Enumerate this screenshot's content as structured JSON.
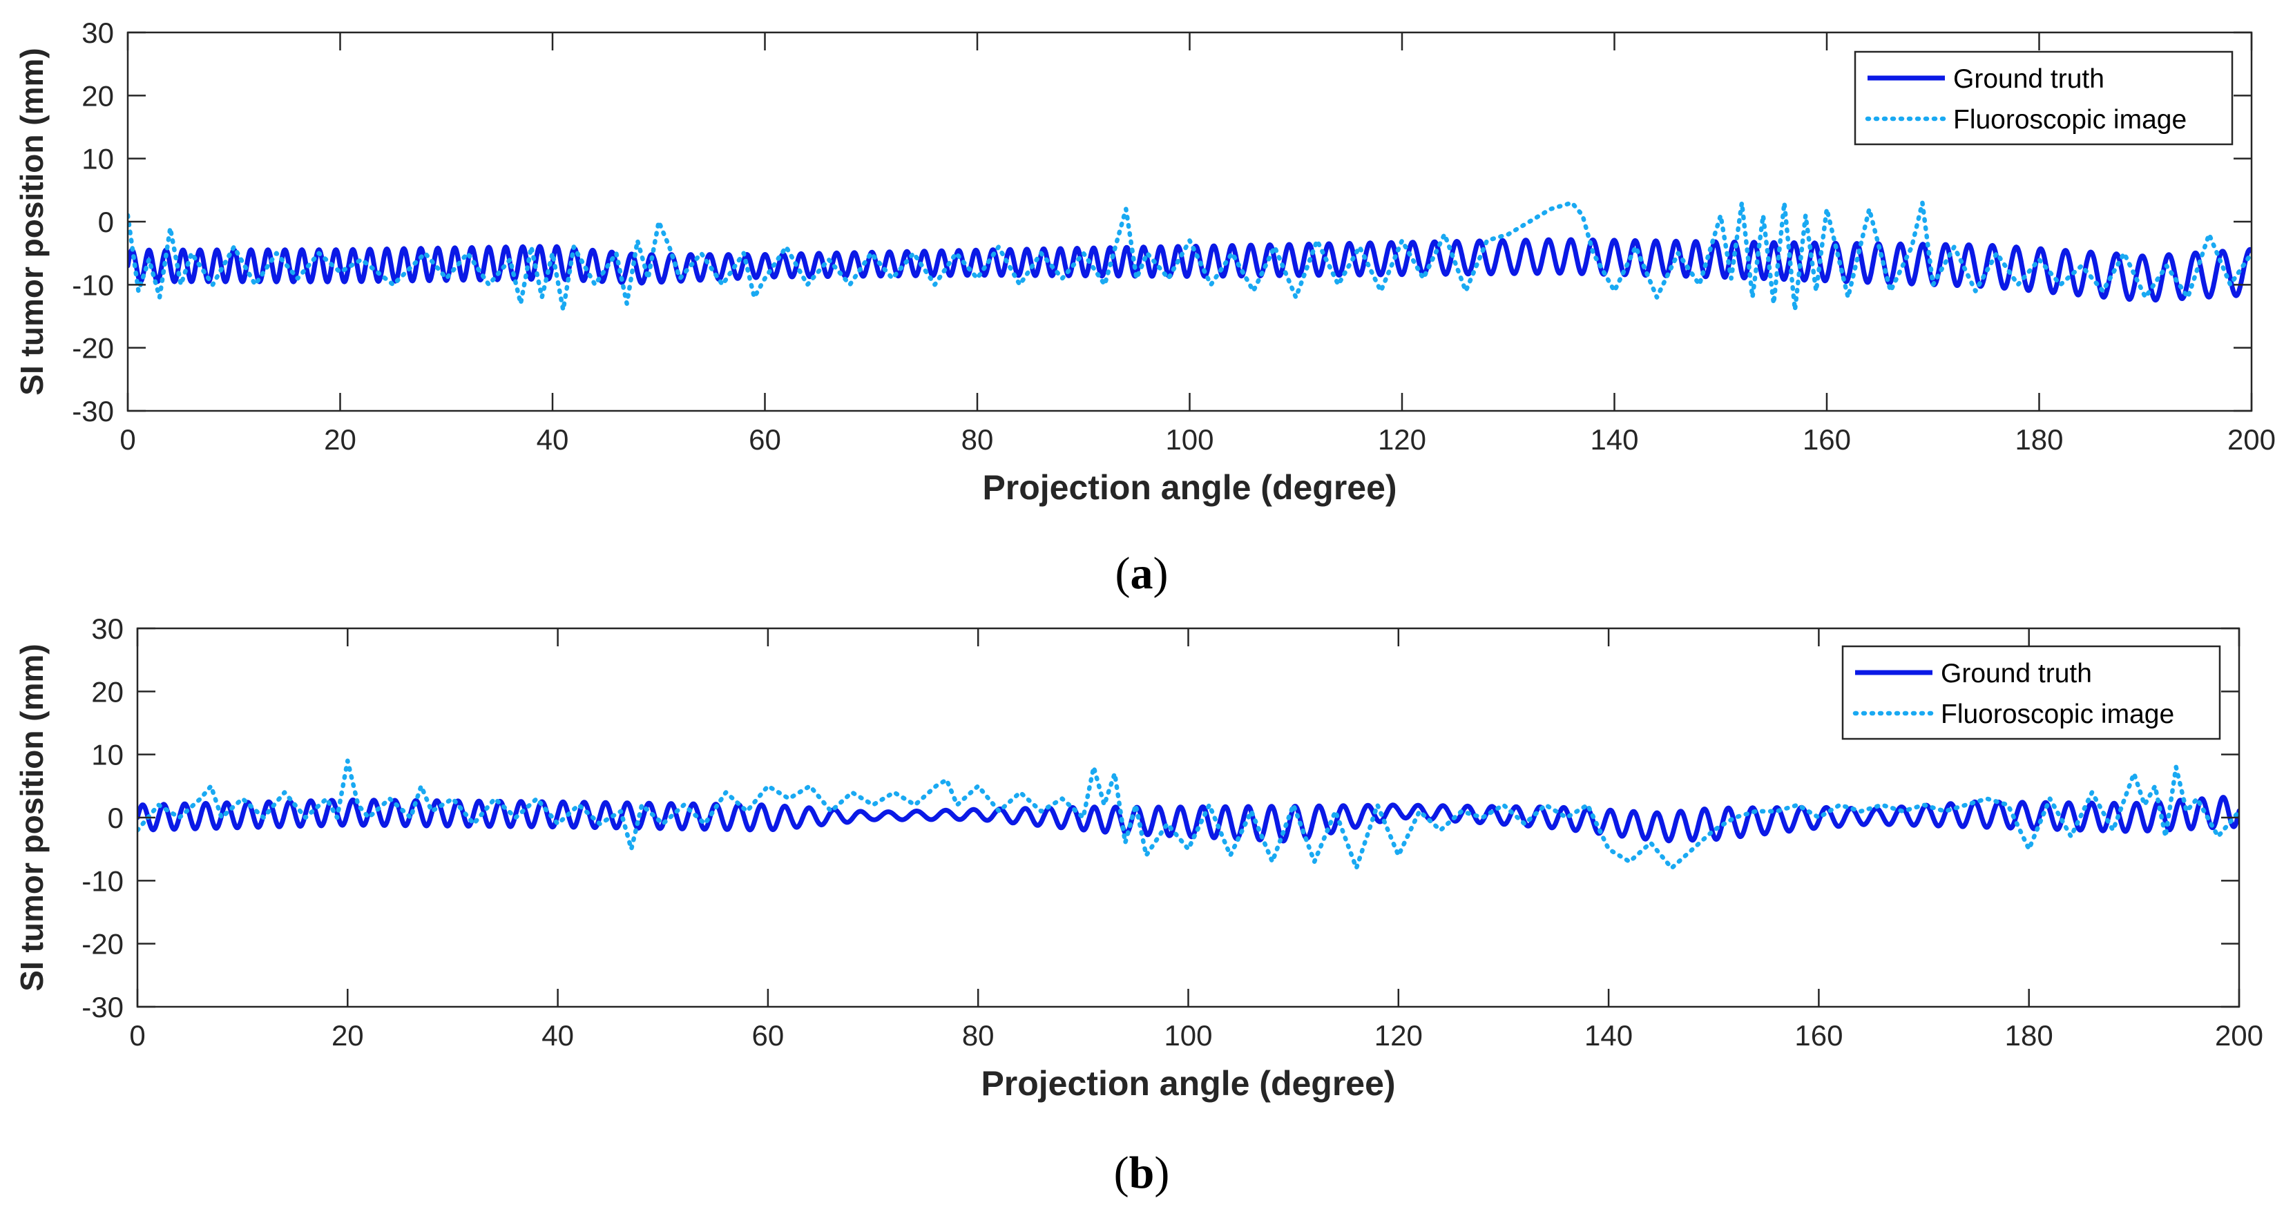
{
  "colors": {
    "ground_truth": "#0a19e6",
    "fluoroscopic": "#19a9f2",
    "axis": "#262626",
    "background": "#ffffff"
  },
  "chart_data": [
    {
      "type": "line",
      "panel_label_open": "(",
      "panel_label_letter": "a",
      "panel_label_close": ")",
      "xlabel": "Projection angle (degree)",
      "ylabel": "SI tumor position (mm)",
      "xlim": [
        0,
        200
      ],
      "ylim": [
        -30,
        30
      ],
      "xticks": [
        0,
        20,
        40,
        60,
        80,
        100,
        120,
        140,
        160,
        180,
        200
      ],
      "yticks": [
        -30,
        -20,
        -10,
        0,
        10,
        20,
        30
      ],
      "legend_position": "top-right",
      "series": [
        {
          "name": "Ground truth",
          "style": "solid",
          "amplitude": [
            [
              0,
              2.5
            ],
            [
              40,
              2.6
            ],
            [
              60,
              1.8
            ],
            [
              80,
              2.0
            ],
            [
              100,
              2.4
            ],
            [
              150,
              2.8
            ],
            [
              185,
              3.5
            ],
            [
              200,
              3.6
            ]
          ],
          "baseline": [
            [
              0,
              -7
            ],
            [
              20,
              -7
            ],
            [
              40,
              -6.5
            ],
            [
              48,
              -7.5
            ],
            [
              60,
              -7
            ],
            [
              80,
              -6.5
            ],
            [
              100,
              -6.3
            ],
            [
              135,
              -5.5
            ],
            [
              150,
              -6
            ],
            [
              175,
              -7
            ],
            [
              190,
              -9
            ],
            [
              200,
              -8
            ]
          ],
          "period": [
            [
              0,
              1.6
            ],
            [
              40,
              1.6
            ],
            [
              47,
              1.9
            ],
            [
              60,
              1.7
            ],
            [
              93,
              1.55
            ],
            [
              130,
              2.2
            ],
            [
              150,
              1.8
            ],
            [
              185,
              2.4
            ],
            [
              200,
              2.6
            ]
          ]
        },
        {
          "name": "Fluoroscopic image",
          "style": "dotted",
          "x": [
            0,
            1,
            2,
            3,
            4,
            5,
            6,
            8,
            10,
            12,
            14,
            16,
            18,
            20,
            22,
            25,
            28,
            30,
            32,
            34,
            36,
            37,
            38,
            39,
            40,
            41,
            42,
            44,
            46,
            47,
            48,
            49,
            50,
            51,
            52,
            54,
            56,
            58,
            59,
            60,
            62,
            64,
            66,
            68,
            70,
            72,
            74,
            76,
            78,
            80,
            82,
            84,
            86,
            88,
            90,
            92,
            93,
            94,
            95,
            96,
            98,
            100,
            102,
            104,
            106,
            108,
            110,
            112,
            114,
            116,
            118,
            120,
            122,
            124,
            126,
            128,
            130,
            132,
            134,
            136,
            137,
            138,
            140,
            142,
            144,
            146,
            148,
            150,
            151,
            152,
            153,
            154,
            155,
            156,
            157,
            158,
            159,
            160,
            162,
            164,
            166,
            168,
            169,
            170,
            172,
            174,
            176,
            178,
            180,
            182,
            184,
            186,
            188,
            190,
            192,
            194,
            196,
            198,
            200
          ],
          "y": [
            1,
            -11,
            -6,
            -12,
            -1,
            -10,
            -5,
            -10,
            -4,
            -10,
            -5,
            -9,
            -5,
            -8,
            -6,
            -10,
            -5,
            -9,
            -5,
            -10,
            -6,
            -13,
            -4,
            -12,
            -5,
            -14,
            -4,
            -10,
            -5,
            -13,
            -3,
            -9,
            0,
            -4,
            -9,
            -5,
            -10,
            -5,
            -12,
            -9,
            -4,
            -10,
            -6,
            -10,
            -5,
            -9,
            -5,
            -10,
            -5,
            -9,
            -4,
            -10,
            -5,
            -9,
            -5,
            -10,
            -4,
            2,
            -9,
            -5,
            -9,
            -3,
            -10,
            -5,
            -11,
            -4,
            -12,
            -3,
            -10,
            -4,
            -11,
            -3,
            -9,
            -2,
            -11,
            -3,
            -2,
            0,
            2,
            3,
            1,
            -5,
            -11,
            -4,
            -12,
            -5,
            -10,
            1,
            -9,
            3,
            -12,
            1,
            -13,
            3,
            -14,
            1,
            -11,
            2,
            -12,
            2,
            -11,
            -4,
            3,
            -10,
            -4,
            -11,
            -5,
            -10,
            -6,
            -10,
            -7,
            -11,
            -5,
            -12,
            -7,
            -12,
            -2,
            -10,
            -5
          ]
        }
      ]
    },
    {
      "type": "line",
      "panel_label_open": "(",
      "panel_label_letter": "b",
      "panel_label_close": ")",
      "xlabel": "Projection angle (degree)",
      "ylabel": "SI tumor position (mm)",
      "xlim": [
        0,
        200
      ],
      "ylim": [
        -30,
        30
      ],
      "xticks": [
        0,
        20,
        40,
        60,
        80,
        100,
        120,
        140,
        160,
        180,
        200
      ],
      "yticks": [
        -30,
        -20,
        -10,
        0,
        10,
        20,
        30
      ],
      "legend_position": "top-right",
      "series": [
        {
          "name": "Ground truth",
          "style": "solid",
          "amplitude": [
            [
              0,
              2.0
            ],
            [
              45,
              2.0
            ],
            [
              60,
              2.0
            ],
            [
              70,
              0.6
            ],
            [
              80,
              0.8
            ],
            [
              92,
              2.0
            ],
            [
              110,
              2.8
            ],
            [
              120,
              1.0
            ],
            [
              130,
              1.4
            ],
            [
              150,
              2.5
            ],
            [
              165,
              1.2
            ],
            [
              175,
              2.0
            ],
            [
              200,
              2.4
            ]
          ],
          "baseline": [
            [
              0,
              0
            ],
            [
              20,
              0.8
            ],
            [
              40,
              0.5
            ],
            [
              60,
              0
            ],
            [
              80,
              0.5
            ],
            [
              95,
              -0.5
            ],
            [
              110,
              -1
            ],
            [
              120,
              1
            ],
            [
              135,
              0
            ],
            [
              145,
              -1.5
            ],
            [
              160,
              0
            ],
            [
              175,
              0.5
            ],
            [
              190,
              0
            ],
            [
              200,
              1
            ]
          ],
          "period": [
            [
              0,
              2.0
            ],
            [
              40,
              2.0
            ],
            [
              60,
              2.2
            ],
            [
              75,
              2.8
            ],
            [
              92,
              2.0
            ],
            [
              120,
              2.4
            ],
            [
              140,
              2.2
            ],
            [
              165,
              2.4
            ],
            [
              200,
              2.0
            ]
          ]
        },
        {
          "name": "Fluoroscopic image",
          "style": "dotted",
          "x": [
            0,
            2,
            4,
            6,
            7,
            8,
            10,
            12,
            14,
            16,
            18,
            19,
            20,
            21,
            22,
            24,
            26,
            27,
            28,
            30,
            32,
            34,
            36,
            38,
            40,
            42,
            44,
            46,
            47,
            48,
            50,
            52,
            54,
            56,
            58,
            60,
            62,
            64,
            66,
            68,
            70,
            72,
            74,
            76,
            77,
            78,
            80,
            82,
            84,
            86,
            88,
            90,
            91,
            92,
            93,
            94,
            95,
            96,
            98,
            100,
            102,
            104,
            106,
            108,
            110,
            112,
            114,
            116,
            118,
            120,
            122,
            124,
            126,
            128,
            130,
            132,
            134,
            136,
            138,
            140,
            142,
            144,
            146,
            148,
            150,
            152,
            154,
            156,
            158,
            160,
            162,
            164,
            166,
            168,
            170,
            172,
            174,
            176,
            178,
            180,
            182,
            184,
            186,
            188,
            190,
            191,
            192,
            193,
            194,
            195,
            196,
            198,
            200
          ],
          "y": [
            -2,
            2,
            0,
            3,
            5,
            0,
            3,
            0,
            4,
            0,
            3,
            0,
            9,
            2,
            0,
            3,
            0,
            5,
            1,
            3,
            -1,
            3,
            0,
            3,
            -1,
            2,
            -1,
            1,
            -5,
            2,
            -1,
            2,
            -1,
            4,
            1,
            5,
            3,
            5,
            1,
            4,
            2,
            4,
            2,
            5,
            6,
            2,
            5,
            1,
            4,
            1,
            3,
            0,
            8,
            2,
            7,
            -4,
            2,
            -6,
            -1,
            -5,
            2,
            -6,
            1,
            -7,
            2,
            -7,
            1,
            -8,
            2,
            -6,
            1,
            -2,
            1,
            0,
            2,
            -1,
            2,
            0,
            2,
            -5,
            -7,
            -4,
            -8,
            -5,
            -2,
            0,
            1,
            1,
            2,
            0,
            2,
            1,
            2,
            1,
            2,
            1,
            2,
            3,
            2,
            -5,
            3,
            -3,
            4,
            -2,
            7,
            2,
            5,
            -3,
            8,
            1,
            3,
            -3,
            1
          ]
        }
      ]
    }
  ]
}
